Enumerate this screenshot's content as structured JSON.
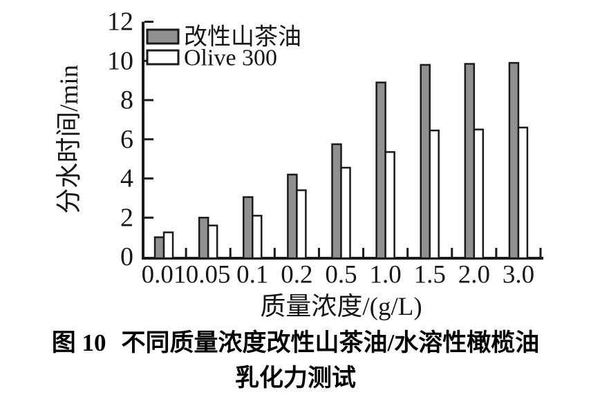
{
  "page": {
    "background": "#ffffff"
  },
  "caption": {
    "figure_label": "图 10",
    "line1": "不同质量浓度改性山茶油/水溶性橄榄油",
    "line2": "乳化力测试"
  },
  "chart_data": {
    "type": "bar",
    "title": "",
    "categories": [
      "0.01",
      "0.05",
      "0.1",
      "0.2",
      "0.5",
      "1.0",
      "1.5",
      "2.0",
      "3.0"
    ],
    "series": [
      {
        "name": "改性山茶油",
        "color": "#909090",
        "values": [
          1.0,
          2.0,
          3.05,
          4.2,
          5.75,
          8.9,
          9.8,
          9.85,
          9.9
        ]
      },
      {
        "name": "Olive 300",
        "color": "#ffffff",
        "values": [
          1.25,
          1.6,
          2.1,
          3.4,
          4.55,
          5.35,
          6.45,
          6.5,
          6.6
        ]
      }
    ],
    "xlabel": "质量浓度/(g/L)",
    "ylabel": "分水时间/min",
    "ylim": [
      0,
      12
    ],
    "yticks": [
      0,
      2,
      4,
      6,
      8,
      10,
      12
    ],
    "legend_position": "top-left",
    "grid": false,
    "colors": {
      "axis": "#1a1a1a",
      "text": "#161616",
      "bar_border": "#1a1a1a"
    }
  }
}
